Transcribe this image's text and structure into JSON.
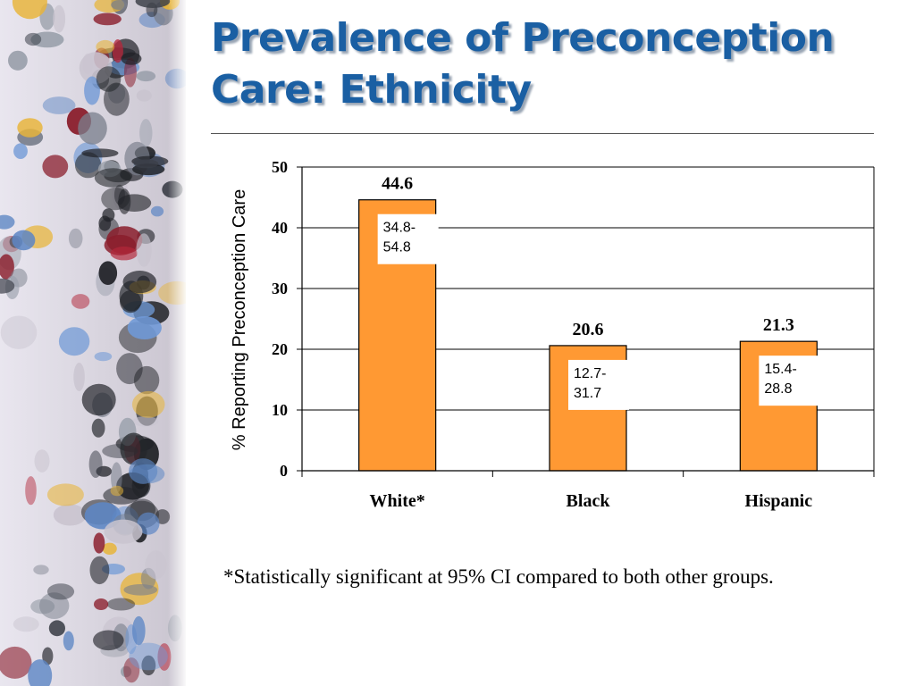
{
  "slide": {
    "title": "Prevalence of Preconception Care: Ethnicity",
    "footnote": "*Statistically significant at 95% CI compared to both other groups."
  },
  "colors": {
    "title": "#1a5fa3",
    "bar_fill": "#ff9933",
    "bar_stroke": "#000000",
    "gridline": "#000000"
  },
  "chart_data": {
    "type": "bar",
    "title": "",
    "xlabel": "",
    "ylabel": "% Reporting Preconception Care",
    "categories": [
      "White*",
      "Black",
      "Hispanic"
    ],
    "values": [
      44.6,
      20.6,
      21.3
    ],
    "value_labels": [
      "44.6",
      "20.6",
      "21.3"
    ],
    "ci_labels": [
      [
        "34.8-",
        "54.8"
      ],
      [
        "12.7-",
        "31.7"
      ],
      [
        "15.4-",
        "28.8"
      ]
    ],
    "ylim": [
      0,
      50
    ],
    "yticks": [
      0,
      10,
      20,
      30,
      40,
      50
    ],
    "grid": true,
    "legend": "none"
  }
}
